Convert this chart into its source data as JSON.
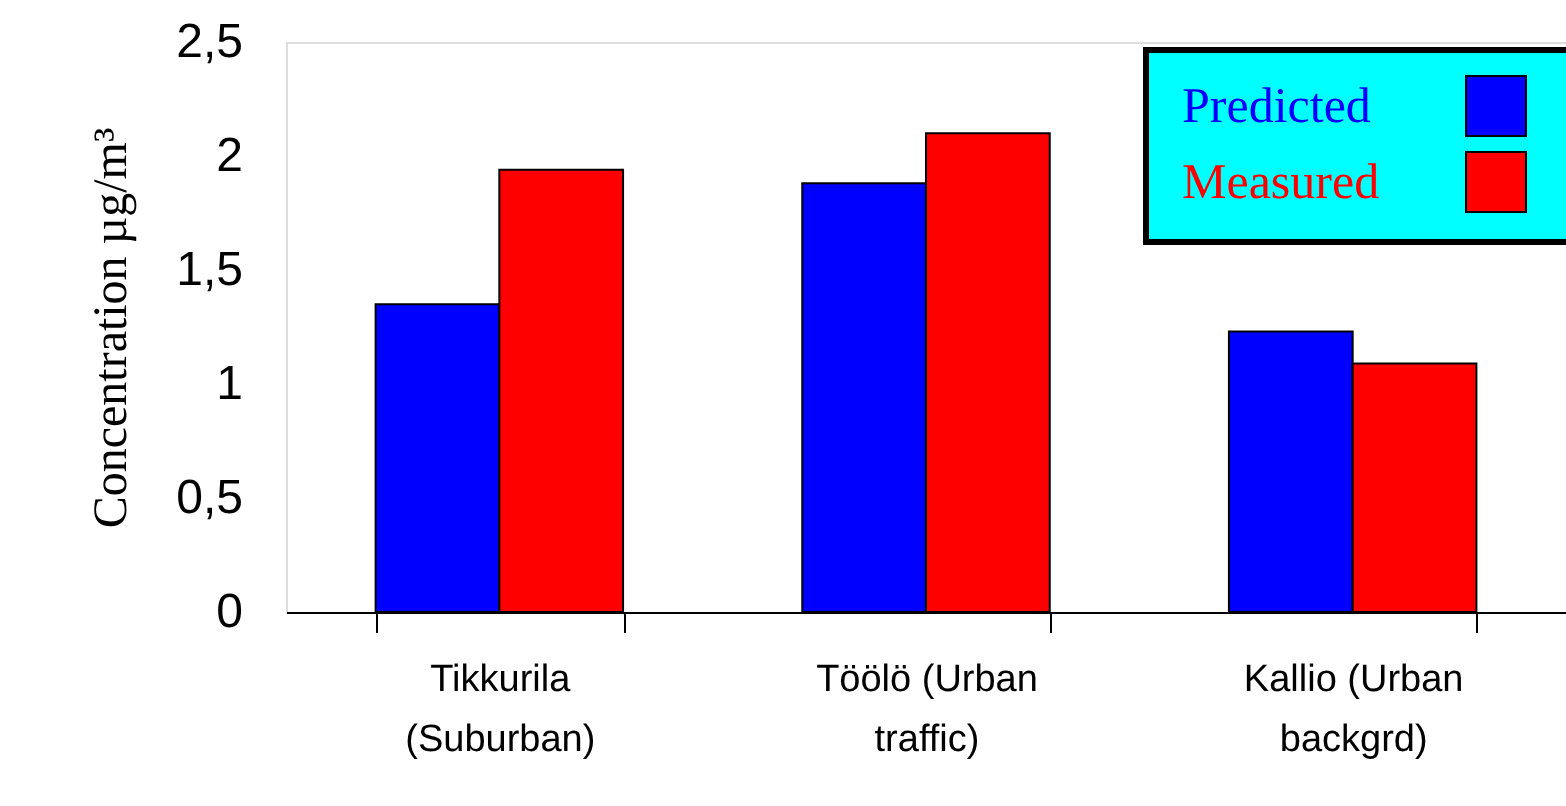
{
  "chart_data": {
    "type": "bar",
    "ylabel": "Concentration µg/m³",
    "categories": [
      "Tikkurila (Suburban)",
      "Töölö (Urban traffic)",
      "Kallio (Urban backgrd)"
    ],
    "series": [
      {
        "name": "Predicted",
        "color": "#0000ff",
        "values": [
          1.35,
          1.88,
          1.23
        ]
      },
      {
        "name": "Measured",
        "color": "#ff0000",
        "values": [
          1.94,
          2.1,
          1.09
        ]
      }
    ],
    "ylim": [
      0,
      2.5
    ],
    "yticks": [
      0,
      {
        "value": 0.5,
        "label": "0,5"
      },
      1,
      {
        "value": 1.5,
        "label": "1,5"
      },
      2,
      {
        "value": 2.5,
        "label": "2,5"
      }
    ],
    "grid": false,
    "legend": "top right"
  }
}
